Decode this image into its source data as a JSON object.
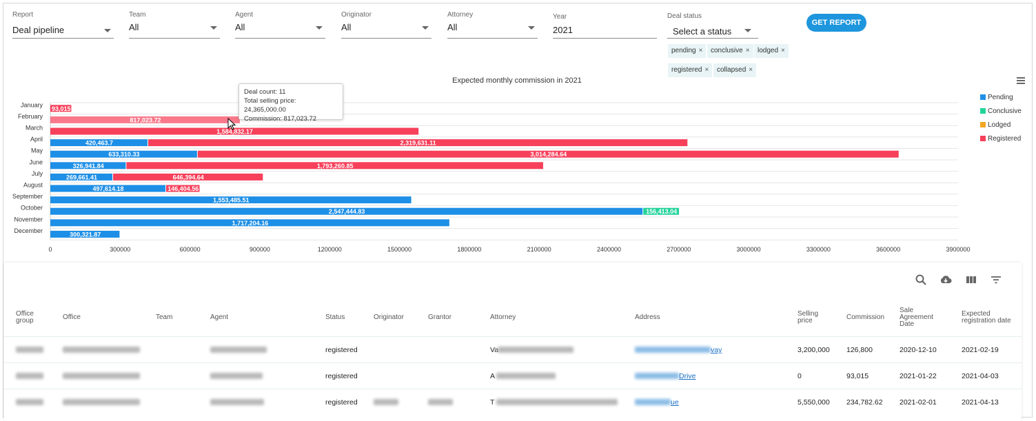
{
  "filters": [
    {
      "label": "Report",
      "value": "Deal pipeline"
    },
    {
      "label": "Team",
      "value": "All"
    },
    {
      "label": "Agent",
      "value": "All"
    },
    {
      "label": "Originator",
      "value": "All"
    },
    {
      "label": "Attorney",
      "value": "All"
    },
    {
      "label": "Year",
      "value": "2021"
    },
    {
      "label": "Deal status",
      "value": "Select a status"
    }
  ],
  "get_report_label": "GET REPORT",
  "status_chips": [
    "pending",
    "conclusive",
    "lodged",
    "registered",
    "collapsed"
  ],
  "chip_remove_glyph": "×",
  "tooltip": {
    "deal_count": "Deal count: 11",
    "total_selling_price": "Total selling price: 24,365,000.00",
    "commission": "Commission: 817,023.72"
  },
  "chart_data": {
    "type": "bar",
    "orientation": "horizontal",
    "stacked": true,
    "title": "Expected monthly commission in 2021",
    "categories": [
      "January",
      "February",
      "March",
      "April",
      "May",
      "June",
      "July",
      "August",
      "September",
      "October",
      "November",
      "December"
    ],
    "series": [
      {
        "name": "Pending",
        "color": "#1e8fe6",
        "values": [
          0,
          0,
          0,
          420463.7,
          633310.33,
          326941.84,
          269661.41,
          497614.18,
          1553485.51,
          2547444.83,
          1717204.16,
          300321.87
        ]
      },
      {
        "name": "Conclusive",
        "color": "#22d39a",
        "values": [
          0,
          0,
          0,
          0,
          0,
          0,
          0,
          0,
          0,
          156413.04,
          0,
          0
        ]
      },
      {
        "name": "Lodged",
        "color": "#f5a623",
        "values": [
          0,
          0,
          0,
          0,
          0,
          0,
          0,
          0,
          0,
          0,
          0,
          0
        ]
      },
      {
        "name": "Registered",
        "color": "#f7405a",
        "values": [
          93015,
          817023.72,
          1584832.17,
          2319631.11,
          3014284.64,
          1793260.85,
          646394.64,
          146404.56,
          0,
          0,
          0,
          0
        ]
      }
    ],
    "data_labels": {
      "Pending": [
        "",
        "",
        "",
        "420,463.7",
        "633,310.33",
        "326,941.84",
        "269,661.41",
        "497,614.18",
        "1,553,485.51",
        "2,547,444.83",
        "1,717,204.16",
        "300,321.87"
      ],
      "Conclusive": [
        "",
        "",
        "",
        "",
        "",
        "",
        "",
        "",
        "",
        "156,413.04",
        "",
        ""
      ],
      "Lodged": [
        "",
        "",
        "",
        "",
        "",
        "",
        "",
        "",
        "",
        "",
        "",
        ""
      ],
      "Registered": [
        "93,015",
        "817,023.72",
        "1,584,832.17",
        "2,319,631.11",
        "3,014,284.64",
        "1,793,260.85",
        "646,394.64",
        "146,404.56",
        "",
        "",
        "",
        ""
      ]
    },
    "xlim": [
      0,
      3900000
    ],
    "x_ticks": [
      "0",
      "300000",
      "600000",
      "900000",
      "1200000",
      "1500000",
      "1800000",
      "2100000",
      "2400000",
      "2700000",
      "3000000",
      "3300000",
      "3600000",
      "3900000"
    ],
    "highlighted_category": "February",
    "grid": true,
    "legend_position": "right"
  },
  "table": {
    "columns": [
      "Office group",
      "Office",
      "Team",
      "Agent",
      "Status",
      "Originator",
      "Grantor",
      "Attorney",
      "Address",
      "Selling price",
      "Commission",
      "Sale Agreement Date",
      "Expected registration date"
    ],
    "rows": [
      {
        "status": "registered",
        "attorney_prefix": "Va",
        "address_suffix": "vay",
        "selling_price": "3,200,000",
        "commission": "126,800",
        "sale_date": "2020-12-10",
        "reg_date": "2021-02-19"
      },
      {
        "status": "registered",
        "attorney_prefix": "A",
        "address_suffix": "Drive",
        "selling_price": "0",
        "commission": "93,015",
        "sale_date": "2021-01-22",
        "reg_date": "2021-04-03"
      },
      {
        "status": "registered",
        "attorney_prefix": "T",
        "address_suffix": "ue",
        "selling_price": "5,550,000",
        "commission": "234,782.62",
        "sale_date": "2021-02-01",
        "reg_date": "2021-04-13"
      }
    ]
  },
  "toolbar_icons": [
    "search-icon",
    "cloud-download-icon",
    "view-columns-icon",
    "filter-icon"
  ]
}
